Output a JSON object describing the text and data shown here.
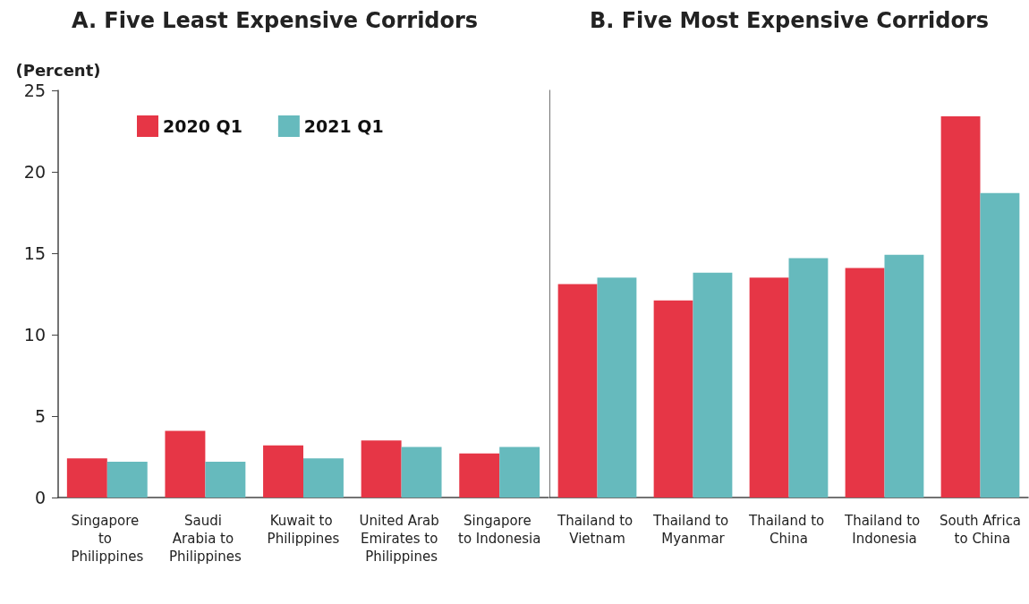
{
  "chart_data": [
    {
      "type": "bar",
      "title": "A. Five Least Expensive Corridors",
      "ylabel": "(Percent)",
      "categories": [
        "Singapore to Philippines",
        "Saudi Arabia to Philippines",
        "Kuwait to Philippines",
        "United Arab Emirates to Philippines",
        "Singapore to Indonesia"
      ],
      "series": [
        {
          "name": "2020 Q1",
          "color": "#e63646",
          "values": [
            2.4,
            4.1,
            3.2,
            3.5,
            2.7
          ]
        },
        {
          "name": "2021 Q1",
          "color": "#66babd",
          "values": [
            2.2,
            2.2,
            2.4,
            3.1,
            3.1
          ]
        }
      ],
      "ylim": [
        0,
        25
      ],
      "yticks": [
        0,
        5,
        10,
        15,
        20,
        25
      ],
      "grid": false,
      "legend": "top left"
    },
    {
      "type": "bar",
      "title": "B. Five Most Expensive Corridors",
      "categories": [
        "Thailand to Vietnam",
        "Thailand to Myanmar",
        "Thailand to China",
        "Thailand to Indonesia",
        "South Africa to China"
      ],
      "series": [
        {
          "color": "#e63646",
          "values": [
            13.1,
            12.1,
            13.5,
            14.1,
            23.4
          ]
        },
        {
          "color": "#66babd",
          "values": [
            13.5,
            13.8,
            14.7,
            14.9,
            18.7
          ]
        }
      ],
      "ylim": [
        0,
        25
      ],
      "yticks": [
        0,
        5,
        10,
        15,
        20,
        25
      ],
      "grid": false,
      "tick_labels": "x"
    }
  ]
}
